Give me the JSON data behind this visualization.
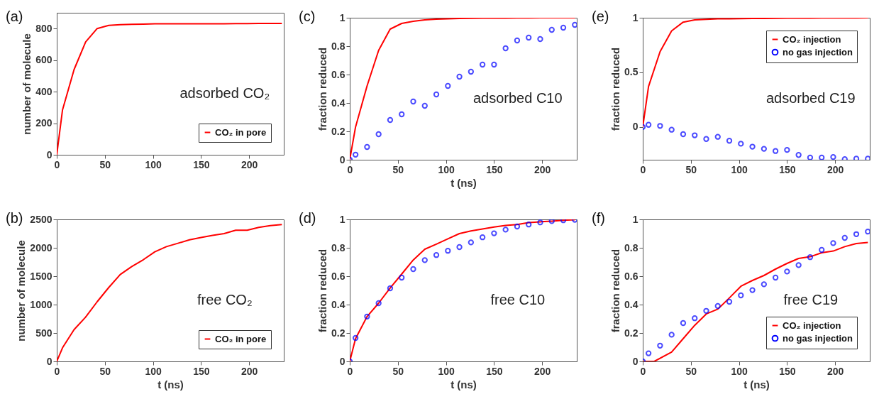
{
  "chart_data": [
    {
      "type": "line",
      "title": "(a)",
      "ylabel": "number of molecule",
      "annotations": [
        "adsorbed CO₂"
      ],
      "xlim": [
        0,
        236
      ],
      "xticks": [
        0,
        50,
        100,
        150,
        200
      ],
      "ylim": [
        0,
        900
      ],
      "yticks": [
        0,
        200,
        400,
        600,
        800
      ],
      "legend": "bottom right",
      "x": [
        0,
        6,
        18,
        30,
        42,
        54,
        66,
        78,
        90,
        102,
        114,
        126,
        138,
        150,
        162,
        174,
        186,
        198,
        210,
        222,
        234
      ],
      "series": [
        {
          "name": "CO₂ in pore",
          "color": "#ff0000",
          "marker": "none",
          "values": [
            0,
            285,
            540,
            715,
            800,
            820,
            825,
            827,
            828,
            830,
            830,
            830,
            830,
            830,
            830,
            830,
            831,
            831,
            832,
            832,
            832
          ]
        }
      ]
    },
    {
      "type": "line",
      "title": "(c)",
      "xlabel": "t (ns)",
      "ylabel": "fraction reduced",
      "annotations": [
        "adsorbed C10"
      ],
      "xlim": [
        0,
        236
      ],
      "xticks": [
        0,
        50,
        100,
        150,
        200
      ],
      "ylim": [
        0,
        1
      ],
      "yticks": [
        0,
        0.2,
        0.4,
        0.6,
        0.8,
        1
      ],
      "x": [
        0,
        6,
        18,
        30,
        42,
        54,
        66,
        78,
        90,
        102,
        114,
        126,
        138,
        150,
        162,
        174,
        186,
        198,
        210,
        222,
        234
      ],
      "series": [
        {
          "color": "#ff0000",
          "marker": "none",
          "values": [
            0,
            0.23,
            0.52,
            0.77,
            0.92,
            0.96,
            0.975,
            0.985,
            0.99,
            0.993,
            0.995,
            0.996,
            0.997,
            0.998,
            0.998,
            0.999,
            0.999,
            1,
            1,
            1,
            1
          ]
        },
        {
          "type": "scatter",
          "color": "#0000ff",
          "marker": "circle",
          "values": [
            0,
            0.036,
            0.09,
            0.18,
            0.28,
            0.32,
            0.41,
            0.38,
            0.46,
            0.52,
            0.585,
            0.62,
            0.67,
            0.67,
            0.785,
            0.84,
            0.86,
            0.85,
            0.915,
            0.93,
            0.95
          ]
        }
      ]
    },
    {
      "type": "line",
      "title": "(e)",
      "ylabel": "fraction reduced",
      "annotations": [
        "adsorbed C19"
      ],
      "xlim": [
        0,
        236
      ],
      "xticks": [
        0,
        50,
        100,
        150,
        200
      ],
      "ylim": [
        -0.3,
        1
      ],
      "yticks": [
        0,
        0.5,
        1
      ],
      "legend": "top right",
      "x": [
        0,
        6,
        18,
        30,
        42,
        54,
        66,
        78,
        90,
        102,
        114,
        126,
        138,
        150,
        162,
        174,
        186,
        198,
        210,
        222,
        234
      ],
      "series": [
        {
          "name": "CO₂ injection",
          "color": "#ff0000",
          "marker": "none",
          "values": [
            0,
            0.37,
            0.69,
            0.88,
            0.96,
            0.98,
            0.985,
            0.99,
            0.99,
            0.992,
            0.993,
            0.994,
            0.995,
            0.996,
            0.997,
            0.997,
            0.998,
            0.998,
            0.999,
            0.999,
            1
          ]
        },
        {
          "type": "scatter",
          "name": "no gas injection",
          "color": "#0000ff",
          "marker": "circle",
          "values": [
            0,
            0.02,
            0.01,
            -0.025,
            -0.066,
            -0.076,
            -0.11,
            -0.09,
            -0.126,
            -0.153,
            -0.18,
            -0.2,
            -0.22,
            -0.21,
            -0.256,
            -0.28,
            -0.28,
            -0.275,
            -0.295,
            -0.29,
            -0.29
          ]
        }
      ]
    },
    {
      "type": "line",
      "title": "(b)",
      "xlabel": "t (ns)",
      "ylabel": "number of molecule",
      "annotations": [
        "free CO₂"
      ],
      "xlim": [
        0,
        236
      ],
      "xticks": [
        0,
        50,
        100,
        150,
        200
      ],
      "ylim": [
        0,
        2500
      ],
      "yticks": [
        0,
        500,
        1000,
        1500,
        2000,
        2500
      ],
      "legend": "bottom right",
      "x": [
        0,
        6,
        18,
        30,
        42,
        54,
        66,
        78,
        90,
        102,
        114,
        126,
        138,
        150,
        162,
        174,
        186,
        198,
        210,
        222,
        234
      ],
      "series": [
        {
          "name": "CO₂ in pore",
          "color": "#ff0000",
          "marker": "none",
          "values": [
            0,
            240,
            560,
            780,
            1050,
            1300,
            1530,
            1670,
            1790,
            1930,
            2020,
            2080,
            2140,
            2180,
            2220,
            2250,
            2310,
            2310,
            2360,
            2390,
            2410
          ]
        }
      ]
    },
    {
      "type": "line",
      "title": "(d)",
      "xlabel": "t (ns)",
      "ylabel": "fraction reduced",
      "annotations": [
        "free C10"
      ],
      "xlim": [
        0,
        236
      ],
      "xticks": [
        0,
        50,
        100,
        150,
        200
      ],
      "ylim": [
        0,
        1
      ],
      "yticks": [
        0,
        0.2,
        0.4,
        0.6,
        0.8,
        1
      ],
      "x": [
        0,
        6,
        18,
        30,
        42,
        54,
        66,
        78,
        90,
        102,
        114,
        126,
        138,
        150,
        162,
        174,
        186,
        198,
        210,
        222,
        234
      ],
      "series": [
        {
          "color": "#ff0000",
          "marker": "none",
          "values": [
            0,
            0.16,
            0.316,
            0.41,
            0.517,
            0.615,
            0.714,
            0.79,
            0.826,
            0.863,
            0.9,
            0.919,
            0.932,
            0.946,
            0.958,
            0.964,
            0.977,
            0.983,
            0.988,
            0.994,
            0.997
          ]
        },
        {
          "type": "scatter",
          "color": "#0000ff",
          "marker": "circle",
          "values": [
            0,
            0.165,
            0.316,
            0.41,
            0.515,
            0.59,
            0.65,
            0.713,
            0.749,
            0.779,
            0.805,
            0.838,
            0.874,
            0.902,
            0.928,
            0.95,
            0.964,
            0.979,
            0.988,
            0.994,
            0.997
          ]
        }
      ]
    },
    {
      "type": "line",
      "title": "(f)",
      "xlabel": "t (ns)",
      "ylabel": "fraction reduced",
      "annotations": [
        "free C19"
      ],
      "xlim": [
        0,
        236
      ],
      "xticks": [
        0,
        50,
        100,
        150,
        200
      ],
      "ylim": [
        0,
        1
      ],
      "yticks": [
        0,
        0.2,
        0.4,
        0.6,
        0.8,
        1
      ],
      "legend": "bottom right",
      "x": [
        0,
        6,
        18,
        30,
        42,
        54,
        66,
        78,
        90,
        102,
        114,
        126,
        138,
        150,
        162,
        174,
        186,
        198,
        210,
        222,
        234
      ],
      "series": [
        {
          "name": "CO₂ injection",
          "color": "#ff0000",
          "marker": "none",
          "x": [
            0,
            12,
            30,
            42,
            54,
            66,
            78,
            90,
            102,
            114,
            126,
            138,
            150,
            162,
            174,
            186,
            198,
            210,
            222,
            234
          ],
          "values": [
            0,
            0,
            0.066,
            0.16,
            0.254,
            0.334,
            0.368,
            0.447,
            0.529,
            0.57,
            0.605,
            0.65,
            0.69,
            0.725,
            0.737,
            0.765,
            0.777,
            0.808,
            0.83,
            0.838
          ]
        },
        {
          "type": "scatter",
          "name": "no gas injection",
          "color": "#0000ff",
          "marker": "circle",
          "values": [
            0,
            0.057,
            0.111,
            0.188,
            0.27,
            0.304,
            0.356,
            0.39,
            0.42,
            0.465,
            0.502,
            0.543,
            0.59,
            0.633,
            0.678,
            0.734,
            0.785,
            0.833,
            0.87,
            0.896,
            0.914
          ]
        }
      ]
    }
  ]
}
